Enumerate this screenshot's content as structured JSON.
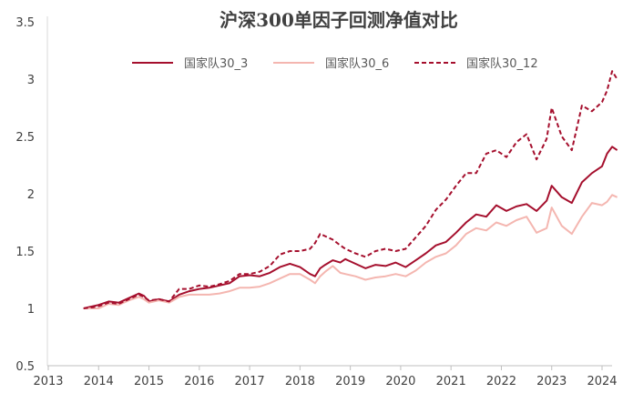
{
  "chart_data": {
    "type": "line",
    "title": "沪深300单因子回测净值对比",
    "xlabel": "",
    "ylabel": "",
    "xlim": [
      2013,
      2024.3
    ],
    "ylim": [
      0.5,
      3.5
    ],
    "x_ticks": [
      "2013",
      "2014",
      "2015",
      "2016",
      "2017",
      "2018",
      "2019",
      "2020",
      "2021",
      "2022",
      "2023",
      "2024"
    ],
    "y_ticks": [
      "0.5",
      "1",
      "1.5",
      "2",
      "2.5",
      "3",
      "3.5"
    ],
    "legend_position": "top-right",
    "series": [
      {
        "name": "国家队30_3",
        "color": "#a50f2d",
        "style": "solid",
        "points": [
          [
            2013.7,
            1.0
          ],
          [
            2013.9,
            1.02
          ],
          [
            2014.0,
            1.03
          ],
          [
            2014.2,
            1.06
          ],
          [
            2014.4,
            1.05
          ],
          [
            2014.6,
            1.09
          ],
          [
            2014.8,
            1.13
          ],
          [
            2014.9,
            1.11
          ],
          [
            2015.0,
            1.06
          ],
          [
            2015.2,
            1.08
          ],
          [
            2015.4,
            1.06
          ],
          [
            2015.6,
            1.12
          ],
          [
            2015.8,
            1.15
          ],
          [
            2016.0,
            1.17
          ],
          [
            2016.2,
            1.18
          ],
          [
            2016.4,
            1.2
          ],
          [
            2016.6,
            1.22
          ],
          [
            2016.8,
            1.28
          ],
          [
            2017.0,
            1.29
          ],
          [
            2017.2,
            1.28
          ],
          [
            2017.4,
            1.31
          ],
          [
            2017.6,
            1.36
          ],
          [
            2017.8,
            1.39
          ],
          [
            2018.0,
            1.36
          ],
          [
            2018.2,
            1.3
          ],
          [
            2018.3,
            1.28
          ],
          [
            2018.4,
            1.35
          ],
          [
            2018.5,
            1.38
          ],
          [
            2018.65,
            1.42
          ],
          [
            2018.8,
            1.4
          ],
          [
            2018.9,
            1.43
          ],
          [
            2019.1,
            1.39
          ],
          [
            2019.3,
            1.35
          ],
          [
            2019.5,
            1.38
          ],
          [
            2019.7,
            1.37
          ],
          [
            2019.9,
            1.4
          ],
          [
            2020.1,
            1.36
          ],
          [
            2020.3,
            1.42
          ],
          [
            2020.5,
            1.48
          ],
          [
            2020.7,
            1.55
          ],
          [
            2020.9,
            1.58
          ],
          [
            2021.1,
            1.66
          ],
          [
            2021.3,
            1.75
          ],
          [
            2021.5,
            1.82
          ],
          [
            2021.7,
            1.8
          ],
          [
            2021.9,
            1.9
          ],
          [
            2022.1,
            1.85
          ],
          [
            2022.3,
            1.89
          ],
          [
            2022.5,
            1.91
          ],
          [
            2022.7,
            1.85
          ],
          [
            2022.9,
            1.94
          ],
          [
            2023.0,
            2.07
          ],
          [
            2023.2,
            1.97
          ],
          [
            2023.4,
            1.92
          ],
          [
            2023.6,
            2.1
          ],
          [
            2023.8,
            2.18
          ],
          [
            2024.0,
            2.24
          ],
          [
            2024.1,
            2.35
          ],
          [
            2024.2,
            2.41
          ],
          [
            2024.3,
            2.38
          ]
        ]
      },
      {
        "name": "国家队30_6",
        "color": "#f4b6b0",
        "style": "solid",
        "points": [
          [
            2013.7,
            1.0
          ],
          [
            2013.9,
            1.0
          ],
          [
            2014.0,
            1.0
          ],
          [
            2014.2,
            1.04
          ],
          [
            2014.4,
            1.03
          ],
          [
            2014.6,
            1.07
          ],
          [
            2014.8,
            1.1
          ],
          [
            2014.9,
            1.08
          ],
          [
            2015.0,
            1.05
          ],
          [
            2015.2,
            1.07
          ],
          [
            2015.4,
            1.05
          ],
          [
            2015.6,
            1.1
          ],
          [
            2015.8,
            1.12
          ],
          [
            2016.0,
            1.12
          ],
          [
            2016.2,
            1.12
          ],
          [
            2016.4,
            1.13
          ],
          [
            2016.6,
            1.15
          ],
          [
            2016.8,
            1.18
          ],
          [
            2017.0,
            1.18
          ],
          [
            2017.2,
            1.19
          ],
          [
            2017.4,
            1.22
          ],
          [
            2017.6,
            1.26
          ],
          [
            2017.8,
            1.3
          ],
          [
            2018.0,
            1.3
          ],
          [
            2018.2,
            1.25
          ],
          [
            2018.3,
            1.22
          ],
          [
            2018.4,
            1.28
          ],
          [
            2018.5,
            1.32
          ],
          [
            2018.65,
            1.37
          ],
          [
            2018.8,
            1.31
          ],
          [
            2018.9,
            1.3
          ],
          [
            2019.1,
            1.28
          ],
          [
            2019.3,
            1.25
          ],
          [
            2019.5,
            1.27
          ],
          [
            2019.7,
            1.28
          ],
          [
            2019.9,
            1.3
          ],
          [
            2020.1,
            1.28
          ],
          [
            2020.3,
            1.33
          ],
          [
            2020.5,
            1.4
          ],
          [
            2020.7,
            1.45
          ],
          [
            2020.9,
            1.48
          ],
          [
            2021.1,
            1.55
          ],
          [
            2021.3,
            1.65
          ],
          [
            2021.5,
            1.7
          ],
          [
            2021.7,
            1.68
          ],
          [
            2021.9,
            1.75
          ],
          [
            2022.1,
            1.72
          ],
          [
            2022.3,
            1.77
          ],
          [
            2022.5,
            1.8
          ],
          [
            2022.7,
            1.66
          ],
          [
            2022.9,
            1.7
          ],
          [
            2023.0,
            1.88
          ],
          [
            2023.2,
            1.72
          ],
          [
            2023.4,
            1.65
          ],
          [
            2023.6,
            1.8
          ],
          [
            2023.8,
            1.92
          ],
          [
            2024.0,
            1.9
          ],
          [
            2024.1,
            1.93
          ],
          [
            2024.2,
            1.99
          ],
          [
            2024.3,
            1.97
          ]
        ]
      },
      {
        "name": "国家队30_12",
        "color": "#a50f2d",
        "style": "dashed",
        "points": [
          [
            2013.7,
            1.0
          ],
          [
            2013.9,
            1.01
          ],
          [
            2014.0,
            1.02
          ],
          [
            2014.2,
            1.05
          ],
          [
            2014.4,
            1.04
          ],
          [
            2014.6,
            1.08
          ],
          [
            2014.8,
            1.12
          ],
          [
            2014.9,
            1.1
          ],
          [
            2015.0,
            1.07
          ],
          [
            2015.2,
            1.08
          ],
          [
            2015.4,
            1.06
          ],
          [
            2015.6,
            1.17
          ],
          [
            2015.8,
            1.17
          ],
          [
            2016.0,
            1.2
          ],
          [
            2016.2,
            1.19
          ],
          [
            2016.4,
            1.21
          ],
          [
            2016.6,
            1.24
          ],
          [
            2016.8,
            1.3
          ],
          [
            2017.0,
            1.3
          ],
          [
            2017.2,
            1.32
          ],
          [
            2017.4,
            1.37
          ],
          [
            2017.6,
            1.47
          ],
          [
            2017.8,
            1.5
          ],
          [
            2018.0,
            1.5
          ],
          [
            2018.2,
            1.52
          ],
          [
            2018.3,
            1.57
          ],
          [
            2018.4,
            1.65
          ],
          [
            2018.5,
            1.63
          ],
          [
            2018.65,
            1.6
          ],
          [
            2018.8,
            1.55
          ],
          [
            2018.9,
            1.52
          ],
          [
            2019.1,
            1.48
          ],
          [
            2019.3,
            1.45
          ],
          [
            2019.5,
            1.5
          ],
          [
            2019.7,
            1.52
          ],
          [
            2019.9,
            1.5
          ],
          [
            2020.1,
            1.52
          ],
          [
            2020.3,
            1.62
          ],
          [
            2020.5,
            1.72
          ],
          [
            2020.7,
            1.86
          ],
          [
            2020.9,
            1.95
          ],
          [
            2021.1,
            2.07
          ],
          [
            2021.3,
            2.18
          ],
          [
            2021.5,
            2.18
          ],
          [
            2021.7,
            2.35
          ],
          [
            2021.9,
            2.38
          ],
          [
            2022.1,
            2.32
          ],
          [
            2022.3,
            2.45
          ],
          [
            2022.5,
            2.52
          ],
          [
            2022.7,
            2.3
          ],
          [
            2022.9,
            2.48
          ],
          [
            2023.0,
            2.75
          ],
          [
            2023.2,
            2.5
          ],
          [
            2023.4,
            2.38
          ],
          [
            2023.6,
            2.77
          ],
          [
            2023.8,
            2.72
          ],
          [
            2024.0,
            2.8
          ],
          [
            2024.1,
            2.9
          ],
          [
            2024.2,
            3.07
          ],
          [
            2024.3,
            3.0
          ]
        ]
      }
    ]
  }
}
